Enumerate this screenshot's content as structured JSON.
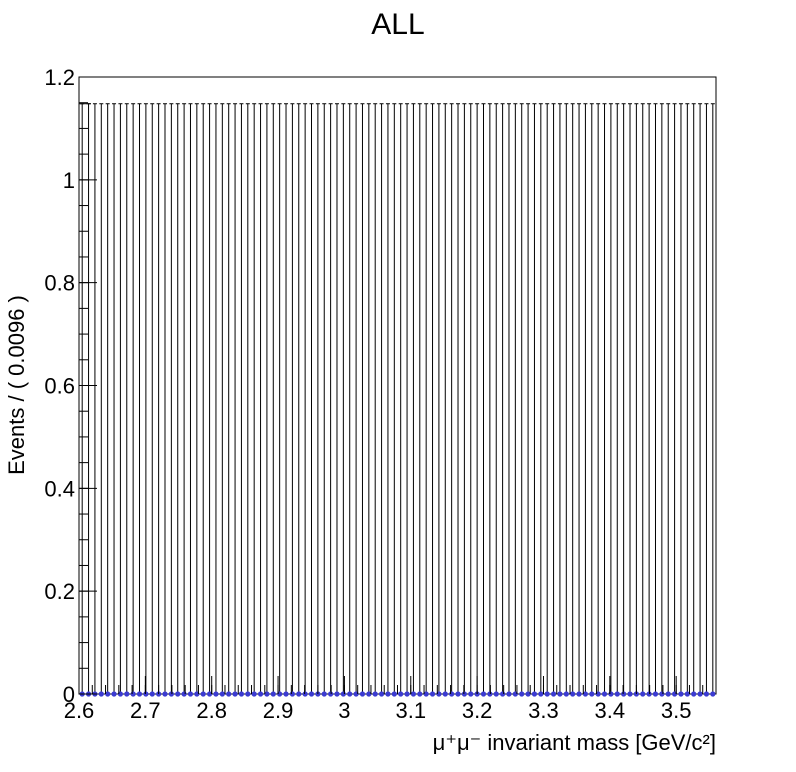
{
  "chart_data": {
    "type": "histogram",
    "title": "ALL",
    "xlabel": "μ⁺μ⁻ invariant mass [GeV/c²]",
    "ylabel": "Events / ( 0.0096 )",
    "xlim": [
      2.6,
      3.56
    ],
    "ylim": [
      0,
      1.2
    ],
    "bin_width": 0.0096,
    "n_bins": 100,
    "x_ticks": [
      "2.6",
      "2.7",
      "2.8",
      "2.9",
      "3",
      "3.1",
      "3.2",
      "3.3",
      "3.4",
      "3.5"
    ],
    "y_ticks": [
      "0",
      "0.2",
      "0.4",
      "0.6",
      "0.8",
      "1",
      "1.2"
    ],
    "error_bar_upper": 1.148,
    "points_value": 0,
    "marker_color": "#3b3bd1",
    "line_color": "#000000"
  }
}
